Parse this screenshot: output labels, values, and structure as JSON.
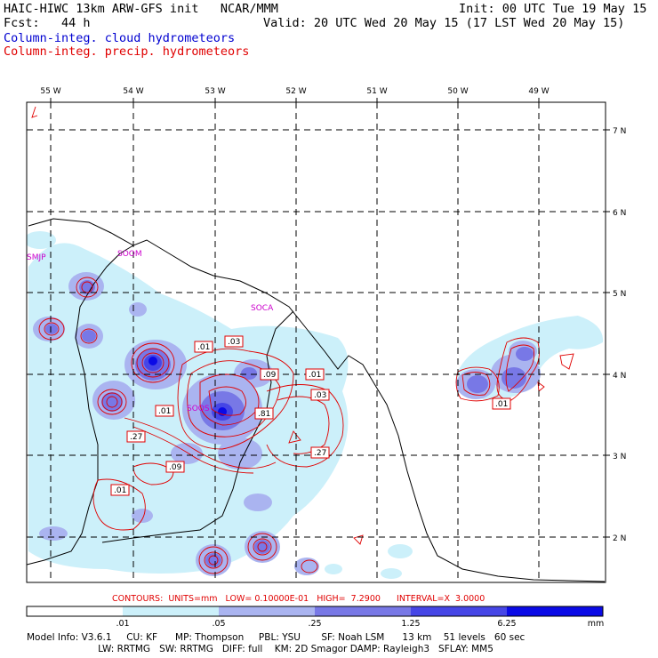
{
  "header": {
    "line1_left": "HAIC-HIWC 13km ARW-GFS init   NCAR/MMM",
    "line1_right": "Init: 00 UTC Tue 19 May 15",
    "line2_left": "Fcst:   44 h",
    "line2_right": "Valid: 20 UTC Wed 20 May 15 (17 LST Wed 20 May 15)",
    "field_cloud": "Column-integ. cloud hydrometeors",
    "field_precip": "Column-integ. precip. hydrometeors"
  },
  "map": {
    "lon_labels": [
      "55 W",
      "54 W",
      "53 W",
      "52 W",
      "51 W",
      "50 W",
      "49 W"
    ],
    "lat_labels": [
      "7 N",
      "6 N",
      "5 N",
      "4 N",
      "3 N",
      "2 N"
    ],
    "stations": [
      "SMJP",
      "SOOM",
      "SOCA",
      "SOOS"
    ],
    "contour_labels": [
      ".01",
      ".03",
      ".09",
      ".01",
      ".03",
      ".01",
      ".81",
      ".27",
      ".09",
      ".27",
      ".01",
      ".01"
    ]
  },
  "legend": {
    "contours_info": "CONTOURS:  UNITS=mm   LOW= 0.10000E-01   HIGH=  7.2900      INTERVAL=X  3.0000",
    "tick_labels": [
      ".01",
      ".05",
      ".25",
      "1.25",
      "6.25",
      "mm"
    ],
    "colors": [
      "#ffffff",
      "#ccf0fa",
      "#aab4f0",
      "#7878e6",
      "#4646e6",
      "#0a0ae6"
    ]
  },
  "footer": {
    "line1": "Model Info: V3.6.1     CU: KF      MP: Thompson     PBL: YSU       SF: Noah LSM      13 km    51 levels   60 sec",
    "line2": "                        LW: RRTMG   SW: RRTMG   DIFF: full    KM: 2D Smagor DAMP: Rayleigh3   SFLAY: MM5"
  }
}
